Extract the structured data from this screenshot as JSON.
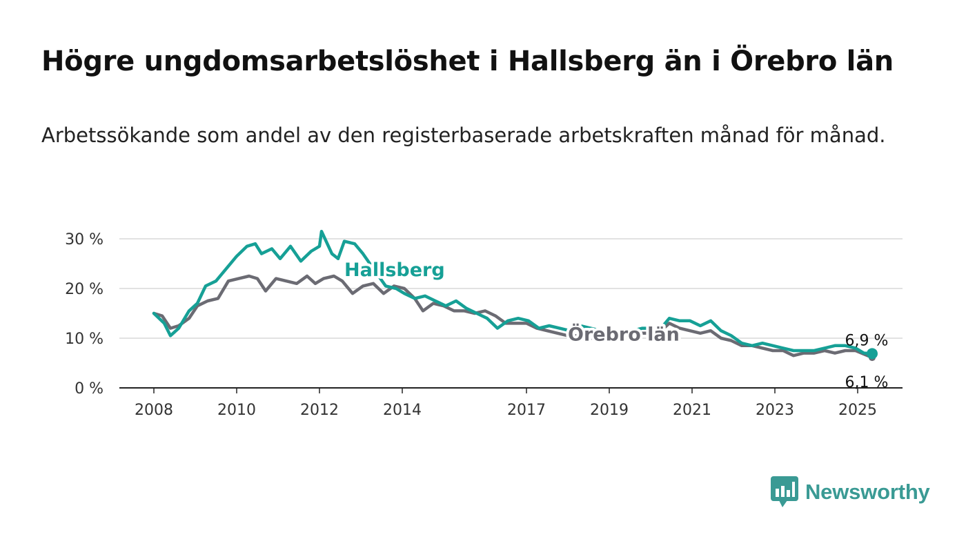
{
  "title": "Högre ungdomsarbetslöshet i Hallsberg än i Örebro län",
  "subtitle": "Arbetssökande som andel av den registerbaserade arbetskraften månad för månad.",
  "logo": {
    "text": "Newsworthy",
    "icon": "bar-chart-speech-bubble-icon",
    "color": "#3a9a94"
  },
  "chart_data": {
    "type": "line",
    "x_unit": "year (fractional)",
    "xlim": [
      2008,
      2025.25
    ],
    "ylim": [
      0,
      30
    ],
    "yticks": [
      0,
      10,
      20,
      30
    ],
    "ytick_labels": [
      "0 %",
      "10 %",
      "20 %",
      "30 %"
    ],
    "xticks": [
      2008,
      2010,
      2012,
      2014,
      2017,
      2019,
      2021,
      2023,
      2025
    ],
    "xtick_labels": [
      "2008",
      "2010",
      "2012",
      "2014",
      "2017",
      "2019",
      "2021",
      "2023",
      "2025"
    ],
    "grid": "horizontal",
    "legend": "inline labels",
    "series": [
      {
        "name": "Hallsberg",
        "color": "#16a096",
        "end_label": "6,9 %",
        "end_value": 6.9,
        "points": [
          [
            2008.0,
            15
          ],
          [
            2008.25,
            13
          ],
          [
            2008.4,
            10.5
          ],
          [
            2008.6,
            12
          ],
          [
            2008.85,
            15.5
          ],
          [
            2009.05,
            17
          ],
          [
            2009.25,
            20.5
          ],
          [
            2009.5,
            21.5
          ],
          [
            2009.75,
            24
          ],
          [
            2010.0,
            26.5
          ],
          [
            2010.25,
            28.5
          ],
          [
            2010.45,
            29
          ],
          [
            2010.6,
            27
          ],
          [
            2010.85,
            28
          ],
          [
            2011.05,
            26
          ],
          [
            2011.3,
            28.5
          ],
          [
            2011.55,
            25.5
          ],
          [
            2011.8,
            27.5
          ],
          [
            2012.0,
            28.5
          ],
          [
            2012.05,
            31.5
          ],
          [
            2012.3,
            27
          ],
          [
            2012.45,
            26
          ],
          [
            2012.6,
            29.5
          ],
          [
            2012.85,
            29
          ],
          [
            2013.05,
            27
          ],
          [
            2013.3,
            24
          ],
          [
            2013.6,
            20.5
          ],
          [
            2013.85,
            20
          ],
          [
            2014.05,
            19
          ],
          [
            2014.3,
            18
          ],
          [
            2014.55,
            18.5
          ],
          [
            2014.8,
            17.5
          ],
          [
            2015.05,
            16.5
          ],
          [
            2015.3,
            17.5
          ],
          [
            2015.55,
            16
          ],
          [
            2015.8,
            15
          ],
          [
            2016.05,
            14
          ],
          [
            2016.3,
            12
          ],
          [
            2016.55,
            13.5
          ],
          [
            2016.8,
            14
          ],
          [
            2017.05,
            13.5
          ],
          [
            2017.3,
            12
          ],
          [
            2017.55,
            12.5
          ],
          [
            2017.8,
            12
          ],
          [
            2018.05,
            11.5
          ],
          [
            2018.3,
            12.5
          ],
          [
            2018.55,
            12
          ],
          [
            2018.8,
            11.5
          ],
          [
            2019.05,
            11
          ],
          [
            2019.3,
            11.5
          ],
          [
            2019.55,
            11.5
          ],
          [
            2019.8,
            12
          ],
          [
            2020.05,
            12
          ],
          [
            2020.3,
            12.5
          ],
          [
            2020.45,
            14
          ],
          [
            2020.7,
            13.5
          ],
          [
            2020.95,
            13.5
          ],
          [
            2021.2,
            12.5
          ],
          [
            2021.45,
            13.5
          ],
          [
            2021.7,
            11.5
          ],
          [
            2021.95,
            10.5
          ],
          [
            2022.2,
            9
          ],
          [
            2022.45,
            8.5
          ],
          [
            2022.7,
            9
          ],
          [
            2022.95,
            8.5
          ],
          [
            2023.2,
            8
          ],
          [
            2023.45,
            7.5
          ],
          [
            2023.7,
            7.5
          ],
          [
            2023.95,
            7.5
          ],
          [
            2024.2,
            8
          ],
          [
            2024.45,
            8.5
          ],
          [
            2024.7,
            8.5
          ],
          [
            2024.95,
            8
          ],
          [
            2025.15,
            7
          ],
          [
            2025.35,
            6.9
          ]
        ]
      },
      {
        "name": "Örebro län",
        "color": "#6b6b73",
        "end_label": "6,1 %",
        "end_value": 6.1,
        "points": [
          [
            2008.0,
            15
          ],
          [
            2008.2,
            14.5
          ],
          [
            2008.4,
            12
          ],
          [
            2008.6,
            12.5
          ],
          [
            2008.85,
            14
          ],
          [
            2009.05,
            16.5
          ],
          [
            2009.3,
            17.5
          ],
          [
            2009.55,
            18
          ],
          [
            2009.8,
            21.5
          ],
          [
            2010.05,
            22
          ],
          [
            2010.3,
            22.5
          ],
          [
            2010.5,
            22
          ],
          [
            2010.7,
            19.5
          ],
          [
            2010.95,
            22
          ],
          [
            2011.2,
            21.5
          ],
          [
            2011.45,
            21
          ],
          [
            2011.7,
            22.5
          ],
          [
            2011.9,
            21
          ],
          [
            2012.1,
            22
          ],
          [
            2012.35,
            22.5
          ],
          [
            2012.55,
            21.5
          ],
          [
            2012.8,
            19
          ],
          [
            2013.05,
            20.5
          ],
          [
            2013.3,
            21
          ],
          [
            2013.55,
            19
          ],
          [
            2013.8,
            20.5
          ],
          [
            2014.05,
            20
          ],
          [
            2014.3,
            18
          ],
          [
            2014.5,
            15.5
          ],
          [
            2014.75,
            17
          ],
          [
            2015.0,
            16.5
          ],
          [
            2015.25,
            15.5
          ],
          [
            2015.5,
            15.5
          ],
          [
            2015.75,
            15
          ],
          [
            2016.0,
            15.5
          ],
          [
            2016.25,
            14.5
          ],
          [
            2016.5,
            13
          ],
          [
            2016.75,
            13
          ],
          [
            2017.0,
            13
          ],
          [
            2017.25,
            12
          ],
          [
            2017.5,
            11.5
          ],
          [
            2017.75,
            11
          ],
          [
            2018.0,
            10.5
          ],
          [
            2018.25,
            10.5
          ],
          [
            2018.5,
            10
          ],
          [
            2018.75,
            10
          ],
          [
            2019.0,
            10
          ],
          [
            2019.25,
            10.5
          ],
          [
            2019.5,
            10.5
          ],
          [
            2019.75,
            11
          ],
          [
            2020.0,
            11
          ],
          [
            2020.25,
            11.5
          ],
          [
            2020.45,
            13
          ],
          [
            2020.7,
            12
          ],
          [
            2020.95,
            11.5
          ],
          [
            2021.2,
            11
          ],
          [
            2021.45,
            11.5
          ],
          [
            2021.7,
            10
          ],
          [
            2021.95,
            9.5
          ],
          [
            2022.2,
            8.5
          ],
          [
            2022.45,
            8.5
          ],
          [
            2022.7,
            8
          ],
          [
            2022.95,
            7.5
          ],
          [
            2023.2,
            7.5
          ],
          [
            2023.45,
            6.5
          ],
          [
            2023.7,
            7
          ],
          [
            2023.95,
            7
          ],
          [
            2024.2,
            7.5
          ],
          [
            2024.45,
            7
          ],
          [
            2024.7,
            7.5
          ],
          [
            2024.95,
            7.5
          ],
          [
            2025.15,
            6.8
          ],
          [
            2025.35,
            6.1
          ]
        ]
      }
    ],
    "inline_labels": [
      {
        "series": "Hallsberg",
        "text": "Hallsberg",
        "at": [
          2012.6,
          22.5
        ]
      },
      {
        "series": "Örebro län",
        "text": "Örebro län",
        "at": [
          2018.0,
          9.5
        ]
      }
    ]
  }
}
